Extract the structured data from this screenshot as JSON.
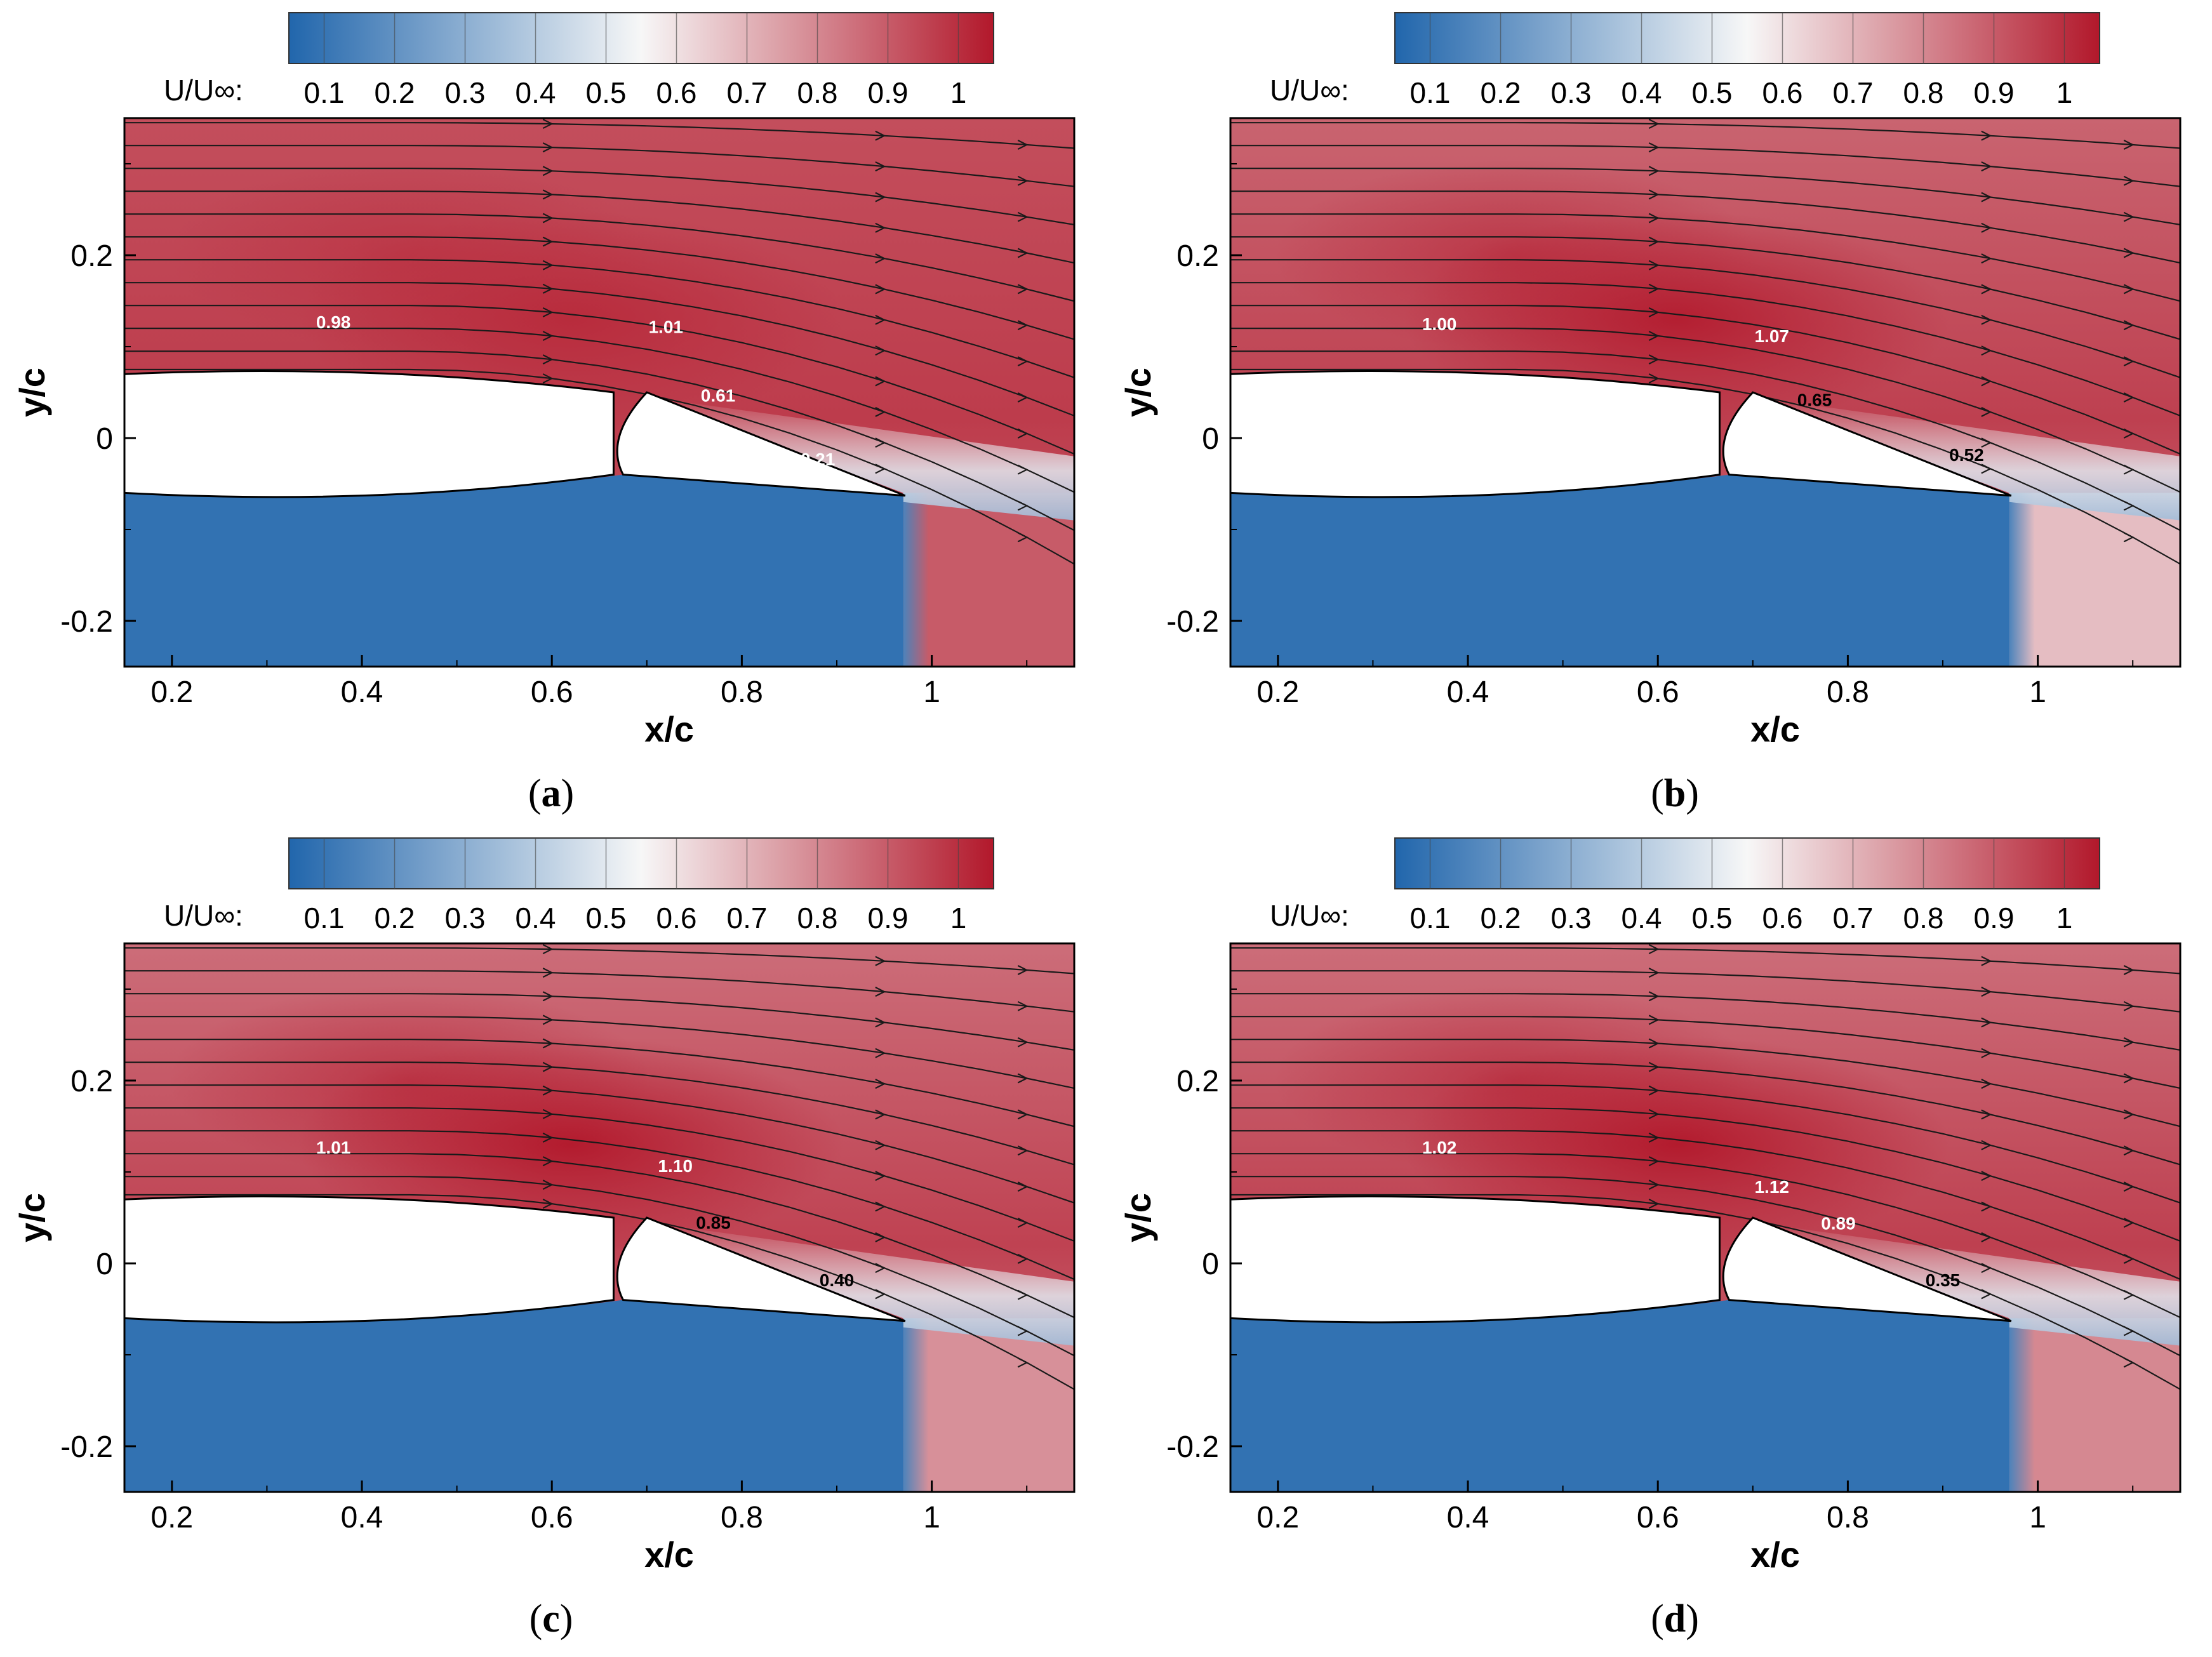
{
  "colors": {
    "blue": "#2166ac",
    "white": "#f7f7f7",
    "red": "#b2182b",
    "airfoil": "#ffffff",
    "streamline": "#1a1a1a"
  },
  "chart_data": [
    {
      "type": "heatmap",
      "panel": "a",
      "caption": "a",
      "xlabel": "x/c",
      "ylabel": "y/c",
      "xlim": [
        0.15,
        1.15
      ],
      "ylim": [
        -0.25,
        0.35
      ],
      "xticks": [
        0.2,
        0.4,
        0.6,
        0.8,
        1
      ],
      "xtick_labels": [
        "0.2",
        "0.4",
        "0.6",
        "0.8",
        "1"
      ],
      "yticks": [
        0.2,
        0,
        -0.2
      ],
      "ytick_labels": [
        "0.2",
        "0",
        "-0.2"
      ],
      "colorbar": {
        "title": "U/U∞:",
        "ticks": [
          0.1,
          0.2,
          0.3,
          0.4,
          0.5,
          0.6,
          0.7,
          0.8,
          0.9,
          1
        ],
        "tick_labels": [
          "0.1",
          "0.2",
          "0.3",
          "0.4",
          "0.5",
          "0.6",
          "0.7",
          "0.8",
          "0.9",
          "1"
        ],
        "range": [
          0.05,
          1.05
        ]
      },
      "wake_level": 0.9,
      "field_level": 0.93,
      "peak_level": 1.01,
      "annotations": [
        {
          "text": "0.98",
          "x": 0.37,
          "y": 0.12,
          "color": "white"
        },
        {
          "text": "1.01",
          "x": 0.72,
          "y": 0.115,
          "color": "white"
        },
        {
          "text": "0.61",
          "x": 0.775,
          "y": 0.04,
          "color": "white"
        },
        {
          "text": "0.21",
          "x": 0.88,
          "y": -0.03,
          "color": "white"
        }
      ]
    },
    {
      "type": "heatmap",
      "panel": "b",
      "caption": "b",
      "xlabel": "x/c",
      "ylabel": "y/c",
      "xlim": [
        0.15,
        1.15
      ],
      "ylim": [
        -0.25,
        0.35
      ],
      "xticks": [
        0.2,
        0.4,
        0.6,
        0.8,
        1
      ],
      "xtick_labels": [
        "0.2",
        "0.4",
        "0.6",
        "0.8",
        "1"
      ],
      "yticks": [
        0.2,
        0,
        -0.2
      ],
      "ytick_labels": [
        "0.2",
        "0",
        "-0.2"
      ],
      "colorbar": {
        "title": "U/U∞:",
        "ticks": [
          0.1,
          0.2,
          0.3,
          0.4,
          0.5,
          0.6,
          0.7,
          0.8,
          0.9,
          1
        ],
        "tick_labels": [
          "0.1",
          "0.2",
          "0.3",
          "0.4",
          "0.5",
          "0.6",
          "0.7",
          "0.8",
          "0.9",
          "1"
        ],
        "range": [
          0.05,
          1.05
        ]
      },
      "wake_level": 0.68,
      "field_level": 0.88,
      "peak_level": 1.04,
      "annotations": [
        {
          "text": "1.00",
          "x": 0.37,
          "y": 0.118,
          "color": "white"
        },
        {
          "text": "1.07",
          "x": 0.72,
          "y": 0.105,
          "color": "white"
        },
        {
          "text": "0.65",
          "x": 0.765,
          "y": 0.035,
          "color": "black"
        },
        {
          "text": "0.52",
          "x": 0.925,
          "y": -0.025,
          "color": "black"
        }
      ]
    },
    {
      "type": "heatmap",
      "panel": "c",
      "caption": "c",
      "xlabel": "x/c",
      "ylabel": "y/c",
      "xlim": [
        0.15,
        1.15
      ],
      "ylim": [
        -0.25,
        0.35
      ],
      "xticks": [
        0.2,
        0.4,
        0.6,
        0.8,
        1
      ],
      "xtick_labels": [
        "0.2",
        "0.4",
        "0.6",
        "0.8",
        "1"
      ],
      "yticks": [
        0.2,
        0,
        -0.2
      ],
      "ytick_labels": [
        "0.2",
        "0",
        "-0.2"
      ],
      "colorbar": {
        "title": "U/U∞:",
        "ticks": [
          0.1,
          0.2,
          0.3,
          0.4,
          0.5,
          0.6,
          0.7,
          0.8,
          0.9,
          1
        ],
        "tick_labels": [
          "0.1",
          "0.2",
          "0.3",
          "0.4",
          "0.5",
          "0.6",
          "0.7",
          "0.8",
          "0.9",
          "1"
        ],
        "range": [
          0.05,
          1.05
        ]
      },
      "wake_level": 0.78,
      "field_level": 0.86,
      "peak_level": 1.05,
      "annotations": [
        {
          "text": "1.01",
          "x": 0.37,
          "y": 0.12,
          "color": "white"
        },
        {
          "text": "1.10",
          "x": 0.73,
          "y": 0.1,
          "color": "white"
        },
        {
          "text": "0.85",
          "x": 0.77,
          "y": 0.038,
          "color": "black"
        },
        {
          "text": "0.40",
          "x": 0.9,
          "y": -0.025,
          "color": "black"
        }
      ]
    },
    {
      "type": "heatmap",
      "panel": "d",
      "caption": "d",
      "xlabel": "x/c",
      "ylabel": "y/c",
      "xlim": [
        0.15,
        1.15
      ],
      "ylim": [
        -0.25,
        0.35
      ],
      "xticks": [
        0.2,
        0.4,
        0.6,
        0.8,
        1
      ],
      "xtick_labels": [
        "0.2",
        "0.4",
        "0.6",
        "0.8",
        "1"
      ],
      "yticks": [
        0.2,
        0,
        -0.2
      ],
      "ytick_labels": [
        "0.2",
        "0",
        "-0.2"
      ],
      "colorbar": {
        "title": "U/U∞:",
        "ticks": [
          0.1,
          0.2,
          0.3,
          0.4,
          0.5,
          0.6,
          0.7,
          0.8,
          0.9,
          1
        ],
        "tick_labels": [
          "0.1",
          "0.2",
          "0.3",
          "0.4",
          "0.5",
          "0.6",
          "0.7",
          "0.8",
          "0.9",
          "1"
        ],
        "range": [
          0.05,
          1.05
        ]
      },
      "wake_level": 0.8,
      "field_level": 0.86,
      "peak_level": 1.06,
      "annotations": [
        {
          "text": "1.02",
          "x": 0.37,
          "y": 0.12,
          "color": "white"
        },
        {
          "text": "1.12",
          "x": 0.72,
          "y": 0.077,
          "color": "white"
        },
        {
          "text": "0.89",
          "x": 0.79,
          "y": 0.037,
          "color": "white"
        },
        {
          "text": "0.35",
          "x": 0.9,
          "y": -0.025,
          "color": "black"
        }
      ]
    }
  ]
}
